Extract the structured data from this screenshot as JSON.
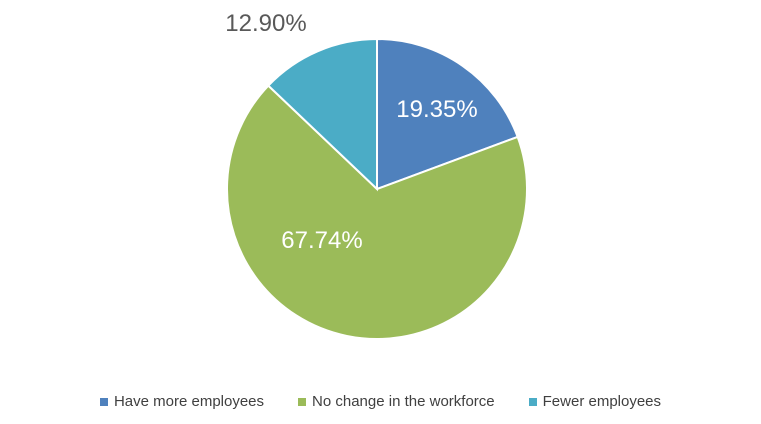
{
  "chart_data": {
    "type": "pie",
    "title": "",
    "categories": [
      "Have more employees",
      "No change in the workforce",
      "Fewer employees"
    ],
    "values": [
      19.35,
      67.74,
      12.9
    ],
    "labels": [
      "19.35%",
      "67.74%",
      "12.90%"
    ],
    "colors": [
      "#4F81BD",
      "#9BBB59",
      "#4BACC6"
    ],
    "label_colors": [
      "#ffffff",
      "#ffffff",
      "#595959"
    ],
    "start_angle_deg": 0,
    "direction": "clockwise",
    "legend_position": "bottom"
  },
  "legend": {
    "items": [
      {
        "label": "Have more employees",
        "color": "#4F81BD"
      },
      {
        "label": "No change in the workforce",
        "color": "#9BBB59"
      },
      {
        "label": "Fewer employees",
        "color": "#4BACC6"
      }
    ]
  }
}
